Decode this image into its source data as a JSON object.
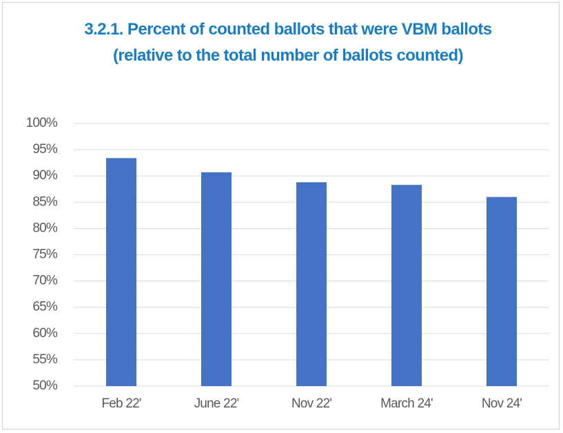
{
  "chart_data": {
    "type": "bar",
    "title": "3.2.1. Percent of counted ballots that were VBM ballots (relative to the total number of ballots counted)",
    "categories": [
      "Feb 22'",
      "June 22'",
      "Nov 22'",
      "March 24'",
      "Nov 24'"
    ],
    "values": [
      93.4,
      90.7,
      88.8,
      88.3,
      86.0
    ],
    "color": "#4472c4",
    "ylim": [
      50,
      100
    ],
    "yticks": [
      {
        "value": 50,
        "label": "50%"
      },
      {
        "value": 55,
        "label": "55%"
      },
      {
        "value": 60,
        "label": "60%"
      },
      {
        "value": 65,
        "label": "65%"
      },
      {
        "value": 70,
        "label": "70%"
      },
      {
        "value": 75,
        "label": "75%"
      },
      {
        "value": 80,
        "label": "80%"
      },
      {
        "value": 85,
        "label": "85%"
      },
      {
        "value": 90,
        "label": "90%"
      },
      {
        "value": 95,
        "label": "95%"
      },
      {
        "value": 100,
        "label": "100%"
      }
    ],
    "grid": true
  }
}
